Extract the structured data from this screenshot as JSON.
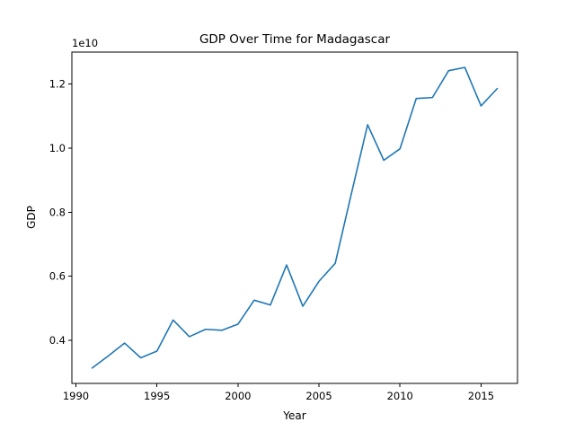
{
  "chart_data": {
    "type": "line",
    "title": "GDP Over Time for Madagascar",
    "xlabel": "Year",
    "ylabel": "GDP",
    "y_offset_label": "1e10",
    "xlim": [
      1989.75,
      2017.25
    ],
    "ylim": [
      0.265,
      1.3
    ],
    "x_ticks": [
      1990,
      1995,
      2000,
      2005,
      2010,
      2015
    ],
    "x_tick_labels": [
      "1990",
      "1995",
      "2000",
      "2005",
      "2010",
      "2015"
    ],
    "y_ticks": [
      0.4,
      0.6,
      0.8,
      1.0,
      1.2
    ],
    "y_tick_labels": [
      "0.4",
      "0.6",
      "0.8",
      "1.0",
      "1.2"
    ],
    "grid": false,
    "line_color": "#1f77b4",
    "x": [
      1991,
      1992,
      1993,
      1994,
      1995,
      1996,
      1997,
      1998,
      1999,
      2000,
      2001,
      2002,
      2003,
      2004,
      2005,
      2006,
      2007,
      2008,
      2009,
      2010,
      2011,
      2012,
      2013,
      2014,
      2015,
      2016
    ],
    "y": [
      0.313,
      0.351,
      0.391,
      0.345,
      0.366,
      0.463,
      0.411,
      0.434,
      0.431,
      0.45,
      0.525,
      0.51,
      0.635,
      0.506,
      0.584,
      0.64,
      0.858,
      1.073,
      0.962,
      0.998,
      1.155,
      1.158,
      1.242,
      1.252,
      1.132,
      1.186
    ]
  }
}
